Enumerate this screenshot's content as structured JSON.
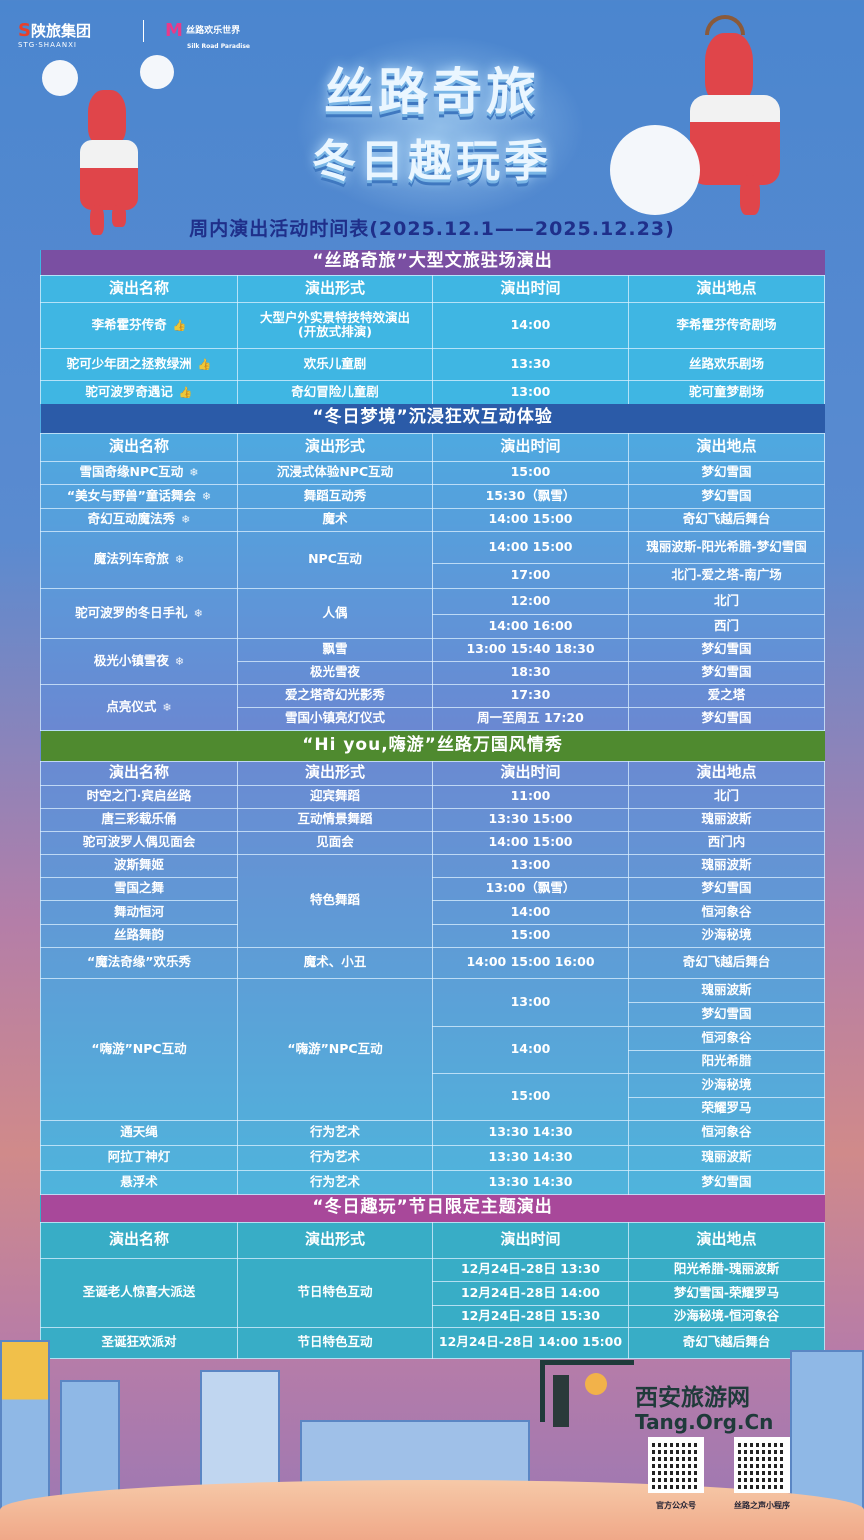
{
  "header": {
    "logo_group": "陕旅集团",
    "logo_group_en": "STG·SHAANXI",
    "logo_park": "丝路欢乐世界",
    "logo_park_en": "Silk Road Paradise",
    "title_line1": "丝路奇旅",
    "title_line2": "冬日趣玩季",
    "subtitle": "周内演出活动时间表(2025.12.1——2025.12.23)"
  },
  "columns": [
    "演出名称",
    "演出形式",
    "演出时间",
    "演出地点"
  ],
  "sections": [
    {
      "title": "“丝路奇旅”大型文旅驻场演出",
      "title_color": "#7a4fa2",
      "body_color": "#3fb6e3",
      "rows": [
        [
          {
            "t": "李希霍芬传奇",
            "icon": "thumbs-up"
          },
          {
            "t": "大型户外实景特技特效演出\n(开放式排演)"
          },
          {
            "t": "14:00"
          },
          {
            "t": "李希霍芬传奇剧场"
          }
        ],
        [
          {
            "t": "驼可少年团之拯救绿洲",
            "icon": "thumbs-up"
          },
          {
            "t": "欢乐儿童剧"
          },
          {
            "t": "13:30"
          },
          {
            "t": "丝路欢乐剧场"
          }
        ],
        [
          {
            "t": "驼可波罗奇遇记",
            "icon": "thumbs-up"
          },
          {
            "t": "奇幻冒险儿童剧"
          },
          {
            "t": "13:00"
          },
          {
            "t": "驼可童梦剧场"
          }
        ]
      ]
    },
    {
      "title": "“冬日梦境”沉浸狂欢互动体验",
      "title_color": "#2b5ba8",
      "body_color": "#4ea9e0",
      "rows": [
        [
          {
            "t": "雪国奇缘NPC互动",
            "icon": "snowflake"
          },
          {
            "t": "沉浸式体验NPC互动"
          },
          {
            "t": "15:00"
          },
          {
            "t": "梦幻雪国"
          }
        ],
        [
          {
            "t": "“美女与野兽”童话舞会",
            "icon": "snowflake"
          },
          {
            "t": "舞蹈互动秀"
          },
          {
            "t": "15:30（飘雪）"
          },
          {
            "t": "梦幻雪国"
          }
        ],
        [
          {
            "t": "奇幻互动魔法秀",
            "icon": "snowflake"
          },
          {
            "t": "魔术"
          },
          {
            "t": "14:00  15:00"
          },
          {
            "t": "奇幻飞越后舞台"
          }
        ],
        [
          {
            "t": "魔法列车奇旅",
            "icon": "snowflake",
            "rs": 2
          },
          {
            "t": "NPC互动",
            "rs": 2
          },
          {
            "t": "14:00  15:00"
          },
          {
            "t": "瑰丽波斯-阳光希腊-梦幻雪国"
          }
        ],
        [
          {
            "t": "17:00"
          },
          {
            "t": "北门-爱之塔-南广场"
          }
        ],
        [
          {
            "t": "驼可波罗的冬日手礼",
            "icon": "snowflake",
            "rs": 2
          },
          {
            "t": "人偶",
            "rs": 2
          },
          {
            "t": "12:00"
          },
          {
            "t": "北门"
          }
        ],
        [
          {
            "t": "14:00  16:00"
          },
          {
            "t": "西门"
          }
        ],
        [
          {
            "t": "极光小镇雪夜",
            "icon": "snowflake",
            "rs": 2
          },
          {
            "t": "飘雪"
          },
          {
            "t": "13:00  15:40  18:30"
          },
          {
            "t": "梦幻雪国"
          }
        ],
        [
          {
            "t": "极光雪夜"
          },
          {
            "t": "18:30"
          },
          {
            "t": "梦幻雪国"
          }
        ],
        [
          {
            "t": "点亮仪式",
            "icon": "snowflake",
            "rs": 2
          },
          {
            "t": "爱之塔奇幻光影秀"
          },
          {
            "t": "17:30"
          },
          {
            "t": "爱之塔"
          }
        ],
        [
          {
            "t": "雪国小镇亮灯仪式"
          },
          {
            "t": "周一至周五 17:20"
          },
          {
            "t": "梦幻雪国"
          }
        ]
      ]
    },
    {
      "title": "“Hi you,嗨游”丝路万国风情秀",
      "title_color": "#4f8a2f",
      "body_color": "#6a8ad2",
      "rows": [
        [
          {
            "t": "时空之门·宾启丝路"
          },
          {
            "t": "迎宾舞蹈"
          },
          {
            "t": "11:00"
          },
          {
            "t": "北门"
          }
        ],
        [
          {
            "t": "唐三彩载乐俑"
          },
          {
            "t": "互动情景舞蹈"
          },
          {
            "t": "13:30 15:00"
          },
          {
            "t": "瑰丽波斯"
          }
        ],
        [
          {
            "t": "驼可波罗人偶见面会"
          },
          {
            "t": "见面会"
          },
          {
            "t": "14:00  15:00"
          },
          {
            "t": "西门内"
          }
        ],
        [
          {
            "t": "波斯舞姬"
          },
          {
            "t": "特色舞蹈",
            "rs": 4
          },
          {
            "t": "13:00"
          },
          {
            "t": "瑰丽波斯"
          }
        ],
        [
          {
            "t": "雪国之舞"
          },
          {
            "t": "13:00（飘雪）"
          },
          {
            "t": "梦幻雪国"
          }
        ],
        [
          {
            "t": "舞动恒河"
          },
          {
            "t": "14:00"
          },
          {
            "t": "恒河象谷"
          }
        ],
        [
          {
            "t": "丝路舞韵"
          },
          {
            "t": "15:00"
          },
          {
            "t": "沙海秘境"
          }
        ],
        [
          {
            "t": "“魔法奇缘”欢乐秀"
          },
          {
            "t": "魔术、小丑"
          },
          {
            "t": "14:00  15:00  16:00"
          },
          {
            "t": "奇幻飞越后舞台"
          }
        ],
        [
          {
            "t": "“嗨游”NPC互动",
            "rs": 6
          },
          {
            "t": "“嗨游”NPC互动",
            "rs": 6
          },
          {
            "t": "13:00",
            "rs": 2
          },
          {
            "t": "瑰丽波斯"
          }
        ],
        [
          {
            "t": "梦幻雪国"
          }
        ],
        [
          {
            "t": "14:00",
            "rs": 2
          },
          {
            "t": "恒河象谷"
          }
        ],
        [
          {
            "t": "阳光希腊"
          }
        ],
        [
          {
            "t": "15:00",
            "rs": 2
          },
          {
            "t": "沙海秘境"
          }
        ],
        [
          {
            "t": "荣耀罗马"
          }
        ],
        [
          {
            "t": "通天绳"
          },
          {
            "t": "行为艺术"
          },
          {
            "t": "13:30 14:30"
          },
          {
            "t": "恒河象谷"
          }
        ],
        [
          {
            "t": "阿拉丁神灯"
          },
          {
            "t": "行为艺术"
          },
          {
            "t": "13:30 14:30"
          },
          {
            "t": "瑰丽波斯"
          }
        ],
        [
          {
            "t": "悬浮术"
          },
          {
            "t": "行为艺术"
          },
          {
            "t": "13:30 14:30"
          },
          {
            "t": "梦幻雪国"
          }
        ]
      ]
    },
    {
      "title": "“冬日趣玩”节日限定主题演出",
      "title_color": "#a8489a",
      "body_color": "#38adc6",
      "rows": [
        [
          {
            "t": "圣诞老人惊喜大派送",
            "rs": 3
          },
          {
            "t": "节日特色互动",
            "rs": 3
          },
          {
            "t": "12月24日-28日 13:30"
          },
          {
            "t": "阳光希腊-瑰丽波斯"
          }
        ],
        [
          {
            "t": "12月24日-28日 14:00"
          },
          {
            "t": "梦幻雪国-荣耀罗马"
          }
        ],
        [
          {
            "t": "12月24日-28日 15:30"
          },
          {
            "t": "沙海秘境-恒河象谷"
          }
        ],
        [
          {
            "t": "圣诞狂欢派对"
          },
          {
            "t": "节日特色互动"
          },
          {
            "t": "12月24日-28日 14:00 15:00"
          },
          {
            "t": "奇幻飞越后舞台"
          }
        ]
      ]
    }
  ],
  "footer": {
    "watermark_name": "西安旅游网",
    "watermark_url": "Tang.Org.Cn",
    "qr_captions": [
      "官方公众号",
      "丝路之声小程序"
    ]
  },
  "icons": {
    "thumbs-up": "👍",
    "snowflake": "❄"
  }
}
